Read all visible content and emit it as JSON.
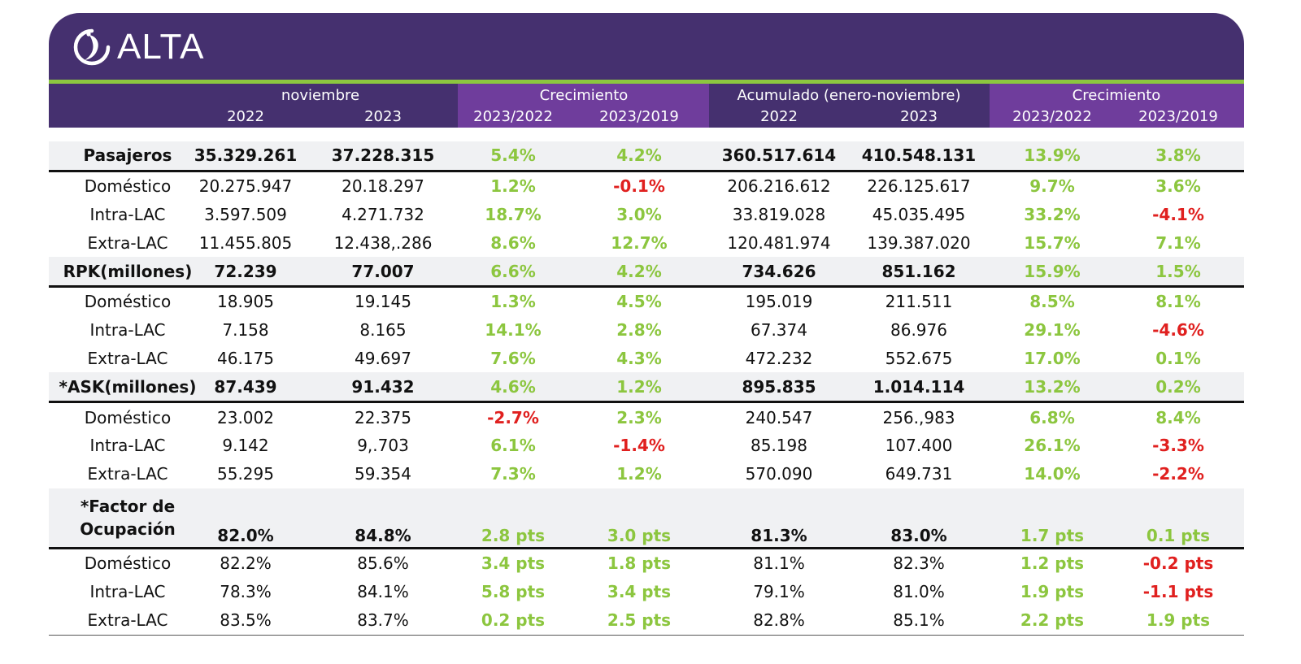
{
  "brand": {
    "logo_text": "ALTA"
  },
  "colors": {
    "purple": "#45306f",
    "purple_light": "#6f3d9c",
    "green": "#8cc63f",
    "red": "#e0201f"
  },
  "header": {
    "groups": [
      "noviembre",
      "Crecimiento",
      "Acumulado (enero-noviembre)",
      "Crecimiento"
    ],
    "subheaders": [
      "2022",
      "2023",
      "2023/2022",
      "2023/2019",
      "2022",
      "2023",
      "2023/2022",
      "2023/2019"
    ]
  },
  "rows": [
    {
      "label": "Pasajeros",
      "bold": true,
      "shade": true,
      "cells": [
        {
          "v": "35.329.261",
          "c": "b"
        },
        {
          "v": "37.228.315",
          "c": "b"
        },
        {
          "v": "5.4%",
          "c": "g"
        },
        {
          "v": "4.2%",
          "c": "g"
        },
        {
          "v": "360.517.614",
          "c": "b"
        },
        {
          "v": "410.548.131",
          "c": "b"
        },
        {
          "v": "13.9%",
          "c": "g"
        },
        {
          "v": "3.8%",
          "c": "g"
        }
      ]
    },
    {
      "label": "Doméstico",
      "cells": [
        {
          "v": "20.275.947",
          "c": "n"
        },
        {
          "v": "20.18.297",
          "c": "n"
        },
        {
          "v": "1.2%",
          "c": "g"
        },
        {
          "v": "-0.1%",
          "c": "r"
        },
        {
          "v": "206.216.612",
          "c": "n"
        },
        {
          "v": "226.125.617",
          "c": "n"
        },
        {
          "v": "9.7%",
          "c": "g"
        },
        {
          "v": "3.6%",
          "c": "g"
        }
      ]
    },
    {
      "label": "Intra-LAC",
      "cells": [
        {
          "v": "3.597.509",
          "c": "n"
        },
        {
          "v": "4.271.732",
          "c": "n"
        },
        {
          "v": "18.7%",
          "c": "g"
        },
        {
          "v": "3.0%",
          "c": "g"
        },
        {
          "v": "33.819.028",
          "c": "n"
        },
        {
          "v": "45.035.495",
          "c": "n"
        },
        {
          "v": "33.2%",
          "c": "g"
        },
        {
          "v": "-4.1%",
          "c": "r"
        }
      ]
    },
    {
      "label": "Extra-LAC",
      "cells": [
        {
          "v": "11.455.805",
          "c": "n"
        },
        {
          "v": "12.438,.286",
          "c": "n"
        },
        {
          "v": "8.6%",
          "c": "g"
        },
        {
          "v": "12.7%",
          "c": "g"
        },
        {
          "v": "120.481.974",
          "c": "n"
        },
        {
          "v": "139.387.020",
          "c": "n"
        },
        {
          "v": "15.7%",
          "c": "g"
        },
        {
          "v": "7.1%",
          "c": "g"
        }
      ]
    },
    {
      "label": "RPK(millones)",
      "bold": true,
      "shade": true,
      "cells": [
        {
          "v": "72.239",
          "c": "b"
        },
        {
          "v": "77.007",
          "c": "b"
        },
        {
          "v": "6.6%",
          "c": "g"
        },
        {
          "v": "4.2%",
          "c": "g"
        },
        {
          "v": "734.626",
          "c": "b"
        },
        {
          "v": "851.162",
          "c": "b"
        },
        {
          "v": "15.9%",
          "c": "g"
        },
        {
          "v": "1.5%",
          "c": "g"
        }
      ]
    },
    {
      "label": "Doméstico",
      "cells": [
        {
          "v": "18.905",
          "c": "n"
        },
        {
          "v": "19.145",
          "c": "n"
        },
        {
          "v": "1.3%",
          "c": "g"
        },
        {
          "v": "4.5%",
          "c": "g"
        },
        {
          "v": "195.019",
          "c": "n"
        },
        {
          "v": "211.511",
          "c": "n"
        },
        {
          "v": "8.5%",
          "c": "g"
        },
        {
          "v": "8.1%",
          "c": "g"
        }
      ]
    },
    {
      "label": "Intra-LAC",
      "cells": [
        {
          "v": "7.158",
          "c": "n"
        },
        {
          "v": "8.165",
          "c": "n"
        },
        {
          "v": "14.1%",
          "c": "g"
        },
        {
          "v": "2.8%",
          "c": "g"
        },
        {
          "v": "67.374",
          "c": "n"
        },
        {
          "v": "86.976",
          "c": "n"
        },
        {
          "v": "29.1%",
          "c": "g"
        },
        {
          "v": "-4.6%",
          "c": "r"
        }
      ]
    },
    {
      "label": "Extra-LAC",
      "cells": [
        {
          "v": "46.175",
          "c": "n"
        },
        {
          "v": "49.697",
          "c": "n"
        },
        {
          "v": "7.6%",
          "c": "g"
        },
        {
          "v": "4.3%",
          "c": "g"
        },
        {
          "v": "472.232",
          "c": "n"
        },
        {
          "v": "552.675",
          "c": "n"
        },
        {
          "v": "17.0%",
          "c": "g"
        },
        {
          "v": "0.1%",
          "c": "g"
        }
      ]
    },
    {
      "label": "*ASK(millones)",
      "bold": true,
      "shade": true,
      "cells": [
        {
          "v": "87.439",
          "c": "b"
        },
        {
          "v": "91.432",
          "c": "b"
        },
        {
          "v": "4.6%",
          "c": "g"
        },
        {
          "v": "1.2%",
          "c": "g"
        },
        {
          "v": "895.835",
          "c": "b"
        },
        {
          "v": "1.014.114",
          "c": "b"
        },
        {
          "v": "13.2%",
          "c": "g"
        },
        {
          "v": "0.2%",
          "c": "g"
        }
      ]
    },
    {
      "label": "Doméstico",
      "cells": [
        {
          "v": "23.002",
          "c": "n"
        },
        {
          "v": "22.375",
          "c": "n"
        },
        {
          "v": "-2.7%",
          "c": "r"
        },
        {
          "v": "2.3%",
          "c": "g"
        },
        {
          "v": "240.547",
          "c": "n"
        },
        {
          "v": "256.,983",
          "c": "n"
        },
        {
          "v": "6.8%",
          "c": "g"
        },
        {
          "v": "8.4%",
          "c": "g"
        }
      ]
    },
    {
      "label": "Intra-LAC",
      "cells": [
        {
          "v": "9.142",
          "c": "n"
        },
        {
          "v": "9,.703",
          "c": "n"
        },
        {
          "v": "6.1%",
          "c": "g"
        },
        {
          "v": "-1.4%",
          "c": "r"
        },
        {
          "v": "85.198",
          "c": "n"
        },
        {
          "v": "107.400",
          "c": "n"
        },
        {
          "v": "26.1%",
          "c": "g"
        },
        {
          "v": "-3.3%",
          "c": "r"
        }
      ]
    },
    {
      "label": "Extra-LAC",
      "cells": [
        {
          "v": "55.295",
          "c": "n"
        },
        {
          "v": "59.354",
          "c": "n"
        },
        {
          "v": "7.3%",
          "c": "g"
        },
        {
          "v": "1.2%",
          "c": "g"
        },
        {
          "v": "570.090",
          "c": "n"
        },
        {
          "v": "649.731",
          "c": "n"
        },
        {
          "v": "14.0%",
          "c": "g"
        },
        {
          "v": "-2.2%",
          "c": "r"
        }
      ]
    },
    {
      "label": "*Factor de",
      "label2": "Ocupación",
      "bold": true,
      "shade": true,
      "tall": true,
      "cells": [
        {
          "v": "82.0%",
          "c": "b"
        },
        {
          "v": "84.8%",
          "c": "b"
        },
        {
          "v": "2.8 pts",
          "c": "g"
        },
        {
          "v": "3.0 pts",
          "c": "g"
        },
        {
          "v": "81.3%",
          "c": "b"
        },
        {
          "v": "83.0%",
          "c": "b"
        },
        {
          "v": "1.7 pts",
          "c": "g"
        },
        {
          "v": "0.1 pts",
          "c": "g"
        }
      ]
    },
    {
      "label": "Doméstico",
      "cells": [
        {
          "v": "82.2%",
          "c": "n"
        },
        {
          "v": "85.6%",
          "c": "n"
        },
        {
          "v": "3.4 pts",
          "c": "g"
        },
        {
          "v": "1.8 pts",
          "c": "g"
        },
        {
          "v": "81.1%",
          "c": "n"
        },
        {
          "v": "82.3%",
          "c": "n"
        },
        {
          "v": "1.2 pts",
          "c": "g"
        },
        {
          "v": "-0.2 pts",
          "c": "r"
        }
      ]
    },
    {
      "label": "Intra-LAC",
      "cells": [
        {
          "v": "78.3%",
          "c": "n"
        },
        {
          "v": "84.1%",
          "c": "n"
        },
        {
          "v": "5.8 pts",
          "c": "g"
        },
        {
          "v": "3.4 pts",
          "c": "g"
        },
        {
          "v": "79.1%",
          "c": "n"
        },
        {
          "v": "81.0%",
          "c": "n"
        },
        {
          "v": "1.9 pts",
          "c": "g"
        },
        {
          "v": "-1.1 pts",
          "c": "r"
        }
      ]
    },
    {
      "label": "Extra-LAC",
      "cells": [
        {
          "v": "83.5%",
          "c": "n"
        },
        {
          "v": "83.7%",
          "c": "n"
        },
        {
          "v": "0.2 pts",
          "c": "g"
        },
        {
          "v": "2.5 pts",
          "c": "g"
        },
        {
          "v": "82.8%",
          "c": "n"
        },
        {
          "v": "85.1%",
          "c": "n"
        },
        {
          "v": "2.2 pts",
          "c": "g"
        },
        {
          "v": "1.9 pts",
          "c": "g"
        }
      ]
    }
  ]
}
